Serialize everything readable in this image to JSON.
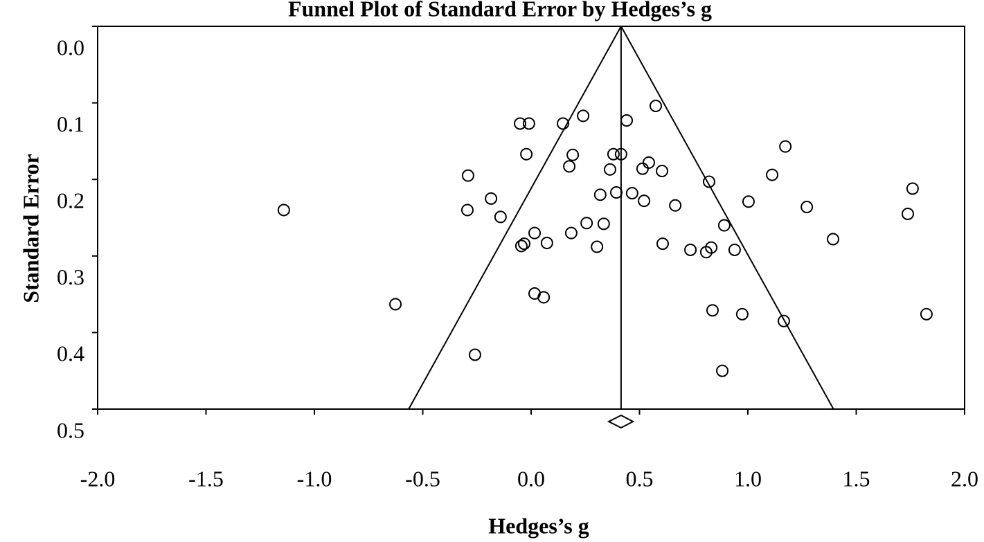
{
  "chart_data": {
    "type": "scatter",
    "title": "Funnel Plot of Standard Error by Hedges’s g",
    "x_label": "Hedges’s g",
    "y_label": "Standard Error",
    "xlim": [
      -2.0,
      2.0
    ],
    "xticks": [
      {
        "value": -2,
        "label": "-2.0"
      },
      {
        "value": -1.5,
        "label": "-1.5"
      },
      {
        "value": -1,
        "label": "-1.0"
      },
      {
        "value": -0.5,
        "label": "-0.5"
      },
      {
        "value": 0,
        "label": "0.0"
      },
      {
        "value": 0.5,
        "label": "0.5"
      },
      {
        "value": 1,
        "label": "1.0"
      },
      {
        "value": 1.5,
        "label": "1.5"
      },
      {
        "value": 2,
        "label": "2.0"
      }
    ],
    "ylim": [
      0,
      0.5
    ],
    "y_inverted": true,
    "yticks": [
      {
        "value": 0,
        "label": "0.0"
      },
      0.1,
      0.2,
      0.3,
      0.4,
      0.5
    ],
    "color": "#000000",
    "x": [
      -1.141,
      -0.626,
      -0.259,
      -0.291,
      -0.294,
      -0.185,
      -0.141,
      -0.051,
      -0.01,
      -0.022,
      -0.045,
      -0.032,
      0.016,
      0.016,
      0.058,
      0.073,
      0.147,
      0.24,
      0.192,
      0.176,
      0.185,
      0.256,
      0.304,
      0.319,
      0.335,
      0.364,
      0.38,
      0.415,
      0.393,
      0.441,
      0.466,
      0.575,
      0.514,
      0.543,
      0.521,
      0.604,
      0.607,
      0.665,
      0.735,
      0.808,
      0.831,
      0.821,
      0.891,
      0.939,
      0.837,
      0.974,
      0.882,
      1.003,
      1.112,
      1.173,
      1.166,
      1.272,
      1.393,
      1.76,
      1.738,
      1.824
    ],
    "values": [
      0.24,
      0.363,
      0.429,
      0.195,
      0.24,
      0.225,
      0.249,
      0.127,
      0.127,
      0.167,
      0.287,
      0.284,
      0.27,
      0.349,
      0.354,
      0.283,
      0.127,
      0.117,
      0.168,
      0.183,
      0.27,
      0.257,
      0.288,
      0.22,
      0.258,
      0.187,
      0.167,
      0.167,
      0.217,
      0.123,
      0.218,
      0.104,
      0.186,
      0.178,
      0.228,
      0.189,
      0.284,
      0.234,
      0.292,
      0.295,
      0.289,
      0.203,
      0.26,
      0.292,
      0.371,
      0.376,
      0.45,
      0.229,
      0.194,
      0.157,
      0.385,
      0.236,
      0.278,
      0.212,
      0.245,
      0.376
    ],
    "mean_line": {
      "x": [
        0.415,
        0.415
      ],
      "y": [
        0,
        0.5
      ]
    },
    "funnel_lines": [
      {
        "x": [
          0.415,
          -0.565
        ],
        "y": [
          0,
          0.5
        ]
      },
      {
        "x": [
          0.415,
          1.395
        ],
        "y": [
          0,
          0.5
        ]
      }
    ],
    "summary_diamond": {
      "estimate": 0.415,
      "ci": [
        0.358,
        0.47
      ]
    }
  }
}
